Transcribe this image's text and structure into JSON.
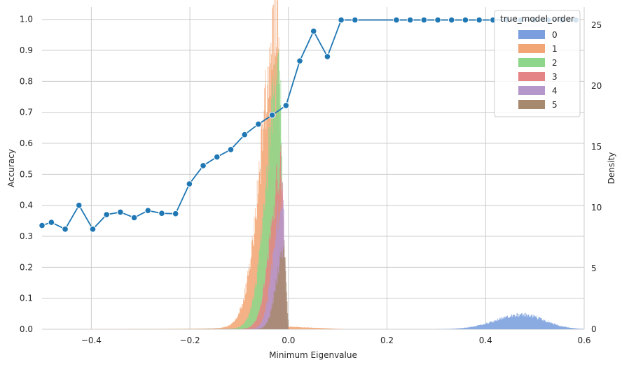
{
  "chart_data": {
    "type": "line",
    "xlabel": "Minimum Eigenvalue",
    "ylabel": "Accuracy",
    "y2label": "Density",
    "xlim": [
      -0.5,
      0.6
    ],
    "ylim": [
      0,
      1.04
    ],
    "y2lim": [
      0,
      26.5
    ],
    "grid": true,
    "xticks": [
      -0.4,
      -0.2,
      0.0,
      0.2,
      0.4,
      0.6
    ],
    "xtick_labels": [
      "−0.4",
      "−0.2",
      "0.0",
      "0.2",
      "0.4",
      "0.6"
    ],
    "yticks": [
      0.0,
      0.1,
      0.2,
      0.3,
      0.4,
      0.5,
      0.6,
      0.7,
      0.8,
      0.9,
      1.0
    ],
    "ytick_labels": [
      "0.0",
      "0.1",
      "0.2",
      "0.3",
      "0.4",
      "0.5",
      "0.6",
      "0.7",
      "0.8",
      "0.9",
      "1.0"
    ],
    "y2ticks": [
      0,
      5,
      10,
      15,
      20,
      25
    ],
    "y2tick_labels": [
      "0",
      "5",
      "10",
      "15",
      "20",
      "25"
    ],
    "accuracy_line": {
      "color": "#1f77b4",
      "points": [
        [
          -0.5,
          0.335
        ],
        [
          -0.481,
          0.345
        ],
        [
          -0.453,
          0.323
        ],
        [
          -0.425,
          0.4
        ],
        [
          -0.397,
          0.323
        ],
        [
          -0.369,
          0.37
        ],
        [
          -0.341,
          0.378
        ],
        [
          -0.313,
          0.36
        ],
        [
          -0.285,
          0.383
        ],
        [
          -0.257,
          0.374
        ],
        [
          -0.229,
          0.373
        ],
        [
          -0.201,
          0.469
        ],
        [
          -0.173,
          0.528
        ],
        [
          -0.145,
          0.556
        ],
        [
          -0.117,
          0.58
        ],
        [
          -0.089,
          0.628
        ],
        [
          -0.061,
          0.662
        ],
        [
          -0.033,
          0.691
        ],
        [
          -0.005,
          0.722
        ],
        [
          0.023,
          0.866
        ],
        [
          0.051,
          0.962
        ],
        [
          0.079,
          0.88
        ],
        [
          0.107,
          0.998
        ],
        [
          0.135,
          0.998
        ],
        [
          0.219,
          0.998
        ],
        [
          0.247,
          0.998
        ],
        [
          0.275,
          0.998
        ],
        [
          0.303,
          0.998
        ],
        [
          0.331,
          0.998
        ],
        [
          0.359,
          0.998
        ],
        [
          0.387,
          0.998
        ],
        [
          0.415,
          0.998
        ],
        [
          0.443,
          0.998
        ],
        [
          0.471,
          0.998
        ],
        [
          0.499,
          0.998
        ],
        [
          0.527,
          0.998
        ],
        [
          0.555,
          0.998
        ],
        [
          0.583,
          0.998
        ]
      ]
    },
    "legend": {
      "title": "true_model_order",
      "placement": "top-right",
      "entries": [
        {
          "label": "0",
          "color": "#7a9ede"
        },
        {
          "label": "1",
          "color": "#f2a675"
        },
        {
          "label": "2",
          "color": "#8ed68b"
        },
        {
          "label": "3",
          "color": "#e58484"
        },
        {
          "label": "4",
          "color": "#b697cc"
        },
        {
          "label": "5",
          "color": "#a78a6e"
        }
      ]
    },
    "density_series": [
      {
        "name": "0",
        "color": "#7a9ede",
        "peak_x": 0.475,
        "peak_density": 1.2,
        "sigma_left": 0.055,
        "sigma_right": 0.045,
        "support": [
          0.3,
          0.6
        ]
      },
      {
        "name": "1",
        "color": "#f2a675",
        "peak_x": -0.022,
        "peak_density": 25.0,
        "sigma_left": 0.032,
        "sigma_right": 0.004,
        "left_tail": 0.5,
        "right_floor": 0.25,
        "support": [
          -0.5,
          0.12
        ]
      },
      {
        "name": "2",
        "color": "#8ed68b",
        "peak_x": -0.018,
        "peak_density": 21.5,
        "sigma_left": 0.026,
        "sigma_right": 0.004,
        "left_tail": 0.2,
        "support": [
          -0.5,
          0.0
        ]
      },
      {
        "name": "3",
        "color": "#e58484",
        "peak_x": -0.014,
        "peak_density": 13.4,
        "sigma_left": 0.022,
        "sigma_right": 0.004,
        "left_tail": 0.15,
        "support": [
          -0.5,
          0.0
        ]
      },
      {
        "name": "4",
        "color": "#b697cc",
        "peak_x": -0.012,
        "peak_density": 10.7,
        "sigma_left": 0.018,
        "sigma_right": 0.004,
        "left_tail": 0.1,
        "support": [
          -0.5,
          0.0
        ]
      },
      {
        "name": "5",
        "color": "#a78a6e",
        "peak_x": -0.009,
        "peak_density": 6.4,
        "sigma_left": 0.016,
        "sigma_right": 0.004,
        "left_tail": 0.1,
        "support": [
          -0.5,
          0.0
        ]
      }
    ]
  }
}
